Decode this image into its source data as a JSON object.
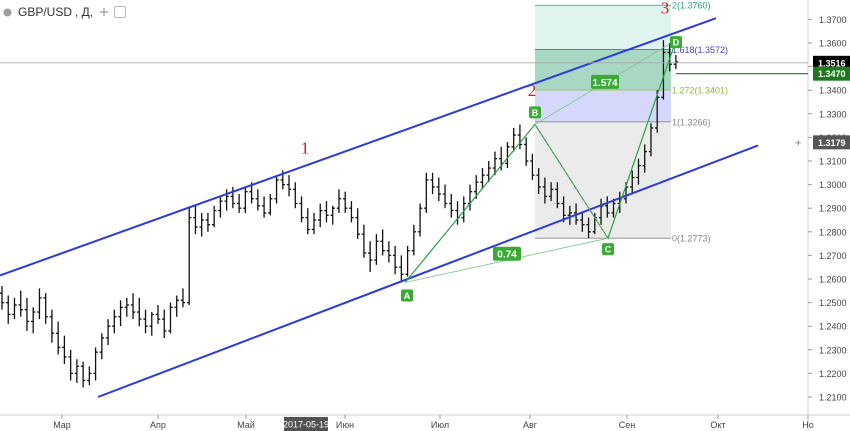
{
  "header": {
    "symbol": "GBP/USD",
    "interval": ", Д,"
  },
  "chart_data": {
    "type": "bar",
    "title": "GBP/USD",
    "x_labels": [
      "Мар",
      "Апр",
      "Май",
      "2017-05-19",
      "Июн",
      "Июл",
      "Авг",
      "Сен",
      "Окт",
      "Но"
    ],
    "y_ticks": [
      1.21,
      1.22,
      1.23,
      1.24,
      1.25,
      1.26,
      1.27,
      1.28,
      1.29,
      1.3,
      1.31,
      1.32,
      1.33,
      1.34,
      1.35,
      1.36,
      1.37
    ],
    "ylim": [
      1.2045,
      1.3795
    ],
    "price_tags": {
      "current": 1.3516,
      "level": 1.347,
      "crosshair": 1.3179
    },
    "highlighted_date": "2017-05-19",
    "swing_points": [
      {
        "label": "A",
        "value": 1.2585
      },
      {
        "label": "B",
        "value": 1.3255
      },
      {
        "label": "C",
        "value": 1.2773
      },
      {
        "label": "D",
        "value": 1.3612
      }
    ],
    "pattern_ratios": [
      "0.74",
      "1.574"
    ],
    "fib_levels": [
      {
        "label": "2(1.3760)",
        "value": 1.376
      },
      {
        "label": "1.618(1.3572)",
        "value": 1.3572
      },
      {
        "label": "1.272(1.3401)",
        "value": 1.3401
      },
      {
        "label": "1(1.3266)",
        "value": 1.3266
      },
      {
        "label": "0(1.2773)",
        "value": 1.2773
      }
    ],
    "wave_labels": [
      "1",
      "2",
      "3"
    ],
    "series": [
      {
        "ohlc": [
          [
            1.254,
            1.257,
            1.247,
            1.25
          ],
          [
            1.25,
            1.253,
            1.241,
            1.245
          ],
          [
            1.245,
            1.252,
            1.243,
            1.249
          ],
          [
            1.249,
            1.255,
            1.244,
            1.247
          ],
          [
            1.247,
            1.252,
            1.238,
            1.242
          ],
          [
            1.242,
            1.248,
            1.237,
            1.246
          ],
          [
            1.246,
            1.256,
            1.243,
            1.252
          ],
          [
            1.252,
            1.254,
            1.241,
            1.244
          ],
          [
            1.244,
            1.247,
            1.233,
            1.237
          ],
          [
            1.237,
            1.242,
            1.228,
            1.231
          ],
          [
            1.231,
            1.236,
            1.224,
            1.227
          ],
          [
            1.227,
            1.23,
            1.217,
            1.22
          ],
          [
            1.22,
            1.226,
            1.216,
            1.223
          ],
          [
            1.223,
            1.225,
            1.214,
            1.217
          ],
          [
            1.217,
            1.223,
            1.215,
            1.22
          ],
          [
            1.22,
            1.231,
            1.217,
            1.229
          ],
          [
            1.229,
            1.237,
            1.226,
            1.235
          ],
          [
            1.235,
            1.243,
            1.232,
            1.24
          ],
          [
            1.24,
            1.247,
            1.237,
            1.244
          ],
          [
            1.244,
            1.251,
            1.24,
            1.248
          ],
          [
            1.248,
            1.252,
            1.244,
            1.249
          ],
          [
            1.249,
            1.254,
            1.243,
            1.246
          ],
          [
            1.246,
            1.252,
            1.24,
            1.243
          ],
          [
            1.243,
            1.247,
            1.237,
            1.24
          ],
          [
            1.24,
            1.246,
            1.236,
            1.245
          ],
          [
            1.245,
            1.249,
            1.241,
            1.243
          ],
          [
            1.243,
            1.247,
            1.235,
            1.238
          ],
          [
            1.238,
            1.25,
            1.237,
            1.248
          ],
          [
            1.248,
            1.253,
            1.244,
            1.251
          ],
          [
            1.251,
            1.256,
            1.248,
            1.25
          ],
          [
            1.25,
            1.29,
            1.249,
            1.286
          ],
          [
            1.286,
            1.291,
            1.279,
            1.282
          ],
          [
            1.282,
            1.288,
            1.278,
            1.285
          ],
          [
            1.285,
            1.288,
            1.28,
            1.283
          ],
          [
            1.283,
            1.291,
            1.282,
            1.289
          ],
          [
            1.289,
            1.295,
            1.286,
            1.293
          ],
          [
            1.293,
            1.298,
            1.289,
            1.295
          ],
          [
            1.295,
            1.299,
            1.29,
            1.292
          ],
          [
            1.292,
            1.296,
            1.288,
            1.29
          ],
          [
            1.29,
            1.299,
            1.288,
            1.297
          ],
          [
            1.297,
            1.301,
            1.292,
            1.294
          ],
          [
            1.294,
            1.298,
            1.289,
            1.291
          ],
          [
            1.291,
            1.295,
            1.286,
            1.288
          ],
          [
            1.288,
            1.296,
            1.287,
            1.294
          ],
          [
            1.294,
            1.304,
            1.292,
            1.302
          ],
          [
            1.302,
            1.306,
            1.298,
            1.3
          ],
          [
            1.3,
            1.304,
            1.295,
            1.298
          ],
          [
            1.298,
            1.301,
            1.29,
            1.292
          ],
          [
            1.292,
            1.295,
            1.284,
            1.286
          ],
          [
            1.286,
            1.29,
            1.279,
            1.281
          ],
          [
            1.281,
            1.288,
            1.279,
            1.285
          ],
          [
            1.285,
            1.292,
            1.282,
            1.289
          ],
          [
            1.289,
            1.293,
            1.284,
            1.287
          ],
          [
            1.287,
            1.291,
            1.283,
            1.29
          ],
          [
            1.29,
            1.298,
            1.288,
            1.294
          ],
          [
            1.294,
            1.297,
            1.288,
            1.29
          ],
          [
            1.29,
            1.293,
            1.284,
            1.286
          ],
          [
            1.286,
            1.29,
            1.277,
            1.279
          ],
          [
            1.279,
            1.283,
            1.269,
            1.271
          ],
          [
            1.271,
            1.276,
            1.263,
            1.268
          ],
          [
            1.268,
            1.279,
            1.266,
            1.276
          ],
          [
            1.276,
            1.281,
            1.27,
            1.272
          ],
          [
            1.272,
            1.276,
            1.267,
            1.27
          ],
          [
            1.27,
            1.274,
            1.262,
            1.265
          ],
          [
            1.265,
            1.27,
            1.2585,
            1.262
          ],
          [
            1.262,
            1.274,
            1.261,
            1.272
          ],
          [
            1.272,
            1.283,
            1.27,
            1.28
          ],
          [
            1.28,
            1.292,
            1.278,
            1.29
          ],
          [
            1.29,
            1.305,
            1.288,
            1.302
          ],
          [
            1.302,
            1.305,
            1.296,
            1.299
          ],
          [
            1.299,
            1.303,
            1.293,
            1.296
          ],
          [
            1.296,
            1.3,
            1.29,
            1.292
          ],
          [
            1.292,
            1.296,
            1.286,
            1.289
          ],
          [
            1.289,
            1.293,
            1.283,
            1.286
          ],
          [
            1.286,
            1.295,
            1.284,
            1.292
          ],
          [
            1.292,
            1.3,
            1.289,
            1.297
          ],
          [
            1.297,
            1.304,
            1.294,
            1.301
          ],
          [
            1.301,
            1.307,
            1.298,
            1.304
          ],
          [
            1.304,
            1.31,
            1.301,
            1.307
          ],
          [
            1.307,
            1.314,
            1.304,
            1.311
          ],
          [
            1.311,
            1.316,
            1.306,
            1.309
          ],
          [
            1.309,
            1.318,
            1.307,
            1.316
          ],
          [
            1.316,
            1.324,
            1.314,
            1.321
          ],
          [
            1.321,
            1.3255,
            1.315,
            1.317
          ],
          [
            1.317,
            1.32,
            1.308,
            1.31
          ],
          [
            1.31,
            1.313,
            1.302,
            1.304
          ],
          [
            1.304,
            1.307,
            1.296,
            1.299
          ],
          [
            1.299,
            1.303,
            1.292,
            1.295
          ],
          [
            1.295,
            1.301,
            1.293,
            1.298
          ],
          [
            1.298,
            1.301,
            1.29,
            1.292
          ],
          [
            1.292,
            1.295,
            1.284,
            1.287
          ],
          [
            1.287,
            1.291,
            1.283,
            1.288
          ],
          [
            1.288,
            1.292,
            1.283,
            1.285
          ],
          [
            1.285,
            1.288,
            1.28,
            1.283
          ],
          [
            1.283,
            1.286,
            1.2773,
            1.28
          ],
          [
            1.28,
            1.288,
            1.279,
            1.286
          ],
          [
            1.286,
            1.294,
            1.283,
            1.291
          ],
          [
            1.291,
            1.295,
            1.286,
            1.288
          ],
          [
            1.288,
            1.294,
            1.286,
            1.292
          ],
          [
            1.292,
            1.297,
            1.288,
            1.294
          ],
          [
            1.294,
            1.301,
            1.292,
            1.299
          ],
          [
            1.299,
            1.306,
            1.296,
            1.303
          ],
          [
            1.303,
            1.311,
            1.3,
            1.308
          ],
          [
            1.308,
            1.317,
            1.305,
            1.314
          ],
          [
            1.314,
            1.326,
            1.312,
            1.324
          ],
          [
            1.324,
            1.34,
            1.322,
            1.337
          ],
          [
            1.337,
            1.3612,
            1.336,
            1.356
          ],
          [
            1.356,
            1.36,
            1.348,
            1.351
          ],
          [
            1.351,
            1.355,
            1.349,
            1.352
          ]
        ]
      }
    ]
  }
}
